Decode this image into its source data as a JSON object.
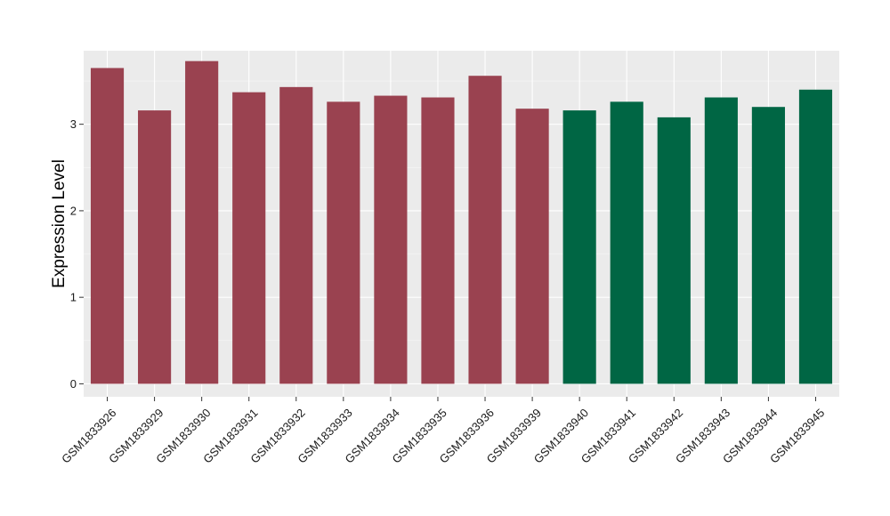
{
  "chart_data": {
    "type": "bar",
    "title": "",
    "xlabel": "",
    "ylabel": "Expression Level",
    "ylim": [
      -0.15,
      3.85
    ],
    "y_ticks": [
      0,
      1,
      2,
      3
    ],
    "grid": true,
    "panel_background": "#ebebeb",
    "categories": [
      "GSM1833926",
      "GSM1833929",
      "GSM1833930",
      "GSM1833931",
      "GSM1833932",
      "GSM1833933",
      "GSM1833934",
      "GSM1833935",
      "GSM1833936",
      "GSM1833939",
      "GSM1833940",
      "GSM1833941",
      "GSM1833942",
      "GSM1833943",
      "GSM1833944",
      "GSM1833945"
    ],
    "values": [
      3.65,
      3.16,
      3.73,
      3.37,
      3.43,
      3.26,
      3.33,
      3.31,
      3.56,
      3.18,
      3.16,
      3.26,
      3.08,
      3.31,
      3.2,
      3.4
    ],
    "bar_colors": [
      "#9a4250",
      "#9a4250",
      "#9a4250",
      "#9a4250",
      "#9a4250",
      "#9a4250",
      "#9a4250",
      "#9a4250",
      "#9a4250",
      "#9a4250",
      "#006644",
      "#006644",
      "#006644",
      "#006644",
      "#006644",
      "#006644"
    ]
  }
}
